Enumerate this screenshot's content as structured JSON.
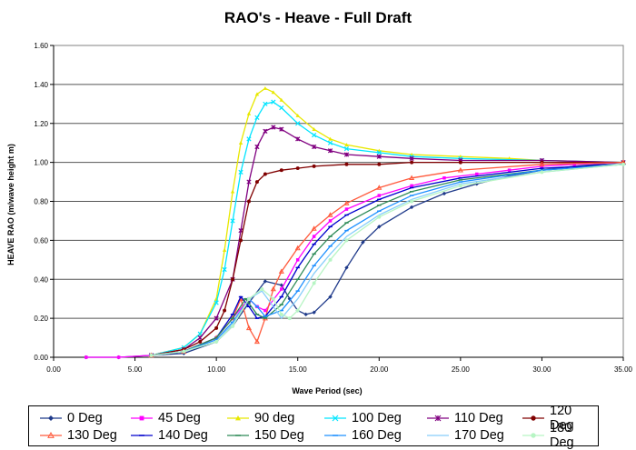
{
  "chart_data": {
    "type": "line",
    "title": "RAO's - Heave - Full Draft",
    "xlabel": "Wave Period  (sec)",
    "ylabel": "HEAVE RAO (m/wave height m)",
    "xlim": [
      0,
      35
    ],
    "ylim": [
      0,
      1.6
    ],
    "x_ticks": [
      "0.00",
      "5.00",
      "10.00",
      "15.00",
      "20.00",
      "25.00",
      "30.00",
      "35.00"
    ],
    "y_ticks": [
      "0.00",
      "0.20",
      "0.40",
      "0.60",
      "0.80",
      "1.00",
      "1.20",
      "1.40",
      "1.60"
    ],
    "grid": "horizontal",
    "legend_position": "bottom",
    "series": [
      {
        "name": "0 Deg",
        "color": "#1f3a8a",
        "marker": "diamond",
        "points": [
          [
            2,
            0
          ],
          [
            4,
            0
          ],
          [
            6,
            0.01
          ],
          [
            8,
            0.02
          ],
          [
            10,
            0.08
          ],
          [
            11,
            0.16
          ],
          [
            12,
            0.28
          ],
          [
            13,
            0.39
          ],
          [
            14,
            0.37
          ],
          [
            14.5,
            0.3
          ],
          [
            15,
            0.24
          ],
          [
            15.5,
            0.22
          ],
          [
            16,
            0.23
          ],
          [
            17,
            0.31
          ],
          [
            18,
            0.46
          ],
          [
            19,
            0.59
          ],
          [
            20,
            0.67
          ],
          [
            22,
            0.77
          ],
          [
            24,
            0.84
          ],
          [
            26,
            0.89
          ],
          [
            28,
            0.93
          ],
          [
            30,
            0.96
          ],
          [
            32,
            0.98
          ],
          [
            35,
            1.0
          ]
        ]
      },
      {
        "name": "45 Deg",
        "color": "#ff00ff",
        "marker": "square",
        "points": [
          [
            2,
            0
          ],
          [
            4,
            0
          ],
          [
            6,
            0.01
          ],
          [
            8,
            0.03
          ],
          [
            10,
            0.1
          ],
          [
            11,
            0.2
          ],
          [
            12,
            0.3
          ],
          [
            12.5,
            0.26
          ],
          [
            13,
            0.24
          ],
          [
            14,
            0.35
          ],
          [
            15,
            0.5
          ],
          [
            16,
            0.62
          ],
          [
            17,
            0.7
          ],
          [
            18,
            0.76
          ],
          [
            20,
            0.83
          ],
          [
            22,
            0.88
          ],
          [
            24,
            0.92
          ],
          [
            26,
            0.94
          ],
          [
            28,
            0.96
          ],
          [
            30,
            0.98
          ],
          [
            32,
            0.99
          ],
          [
            35,
            1.0
          ]
        ]
      },
      {
        "name": "90 deg",
        "color": "#e8e800",
        "marker": "triangle",
        "points": [
          [
            6,
            0.01
          ],
          [
            8,
            0.05
          ],
          [
            9,
            0.12
          ],
          [
            10,
            0.3
          ],
          [
            10.5,
            0.55
          ],
          [
            11,
            0.85
          ],
          [
            11.5,
            1.1
          ],
          [
            12,
            1.25
          ],
          [
            12.5,
            1.35
          ],
          [
            13,
            1.38
          ],
          [
            13.5,
            1.36
          ],
          [
            14,
            1.32
          ],
          [
            15,
            1.24
          ],
          [
            16,
            1.17
          ],
          [
            17,
            1.12
          ],
          [
            18,
            1.09
          ],
          [
            20,
            1.06
          ],
          [
            22,
            1.04
          ],
          [
            25,
            1.03
          ],
          [
            28,
            1.02
          ],
          [
            30,
            1.01
          ],
          [
            35,
            1.0
          ]
        ]
      },
      {
        "name": "100 Deg",
        "color": "#00e5ff",
        "marker": "x",
        "points": [
          [
            6,
            0.01
          ],
          [
            8,
            0.05
          ],
          [
            9,
            0.12
          ],
          [
            10,
            0.28
          ],
          [
            10.5,
            0.45
          ],
          [
            11,
            0.7
          ],
          [
            11.5,
            0.95
          ],
          [
            12,
            1.12
          ],
          [
            12.5,
            1.23
          ],
          [
            13,
            1.3
          ],
          [
            13.5,
            1.31
          ],
          [
            14,
            1.28
          ],
          [
            15,
            1.2
          ],
          [
            16,
            1.14
          ],
          [
            17,
            1.1
          ],
          [
            18,
            1.07
          ],
          [
            20,
            1.05
          ],
          [
            22,
            1.03
          ],
          [
            25,
            1.02
          ],
          [
            30,
            1.01
          ],
          [
            35,
            1.0
          ]
        ]
      },
      {
        "name": "110 Deg",
        "color": "#800080",
        "marker": "asterisk",
        "points": [
          [
            6,
            0.01
          ],
          [
            8,
            0.04
          ],
          [
            9,
            0.1
          ],
          [
            10,
            0.2
          ],
          [
            11,
            0.4
          ],
          [
            11.5,
            0.65
          ],
          [
            12,
            0.9
          ],
          [
            12.5,
            1.08
          ],
          [
            13,
            1.16
          ],
          [
            13.5,
            1.18
          ],
          [
            14,
            1.17
          ],
          [
            15,
            1.12
          ],
          [
            16,
            1.08
          ],
          [
            17,
            1.06
          ],
          [
            18,
            1.04
          ],
          [
            20,
            1.03
          ],
          [
            22,
            1.02
          ],
          [
            25,
            1.01
          ],
          [
            30,
            1.01
          ],
          [
            35,
            1.0
          ]
        ]
      },
      {
        "name": "120 Deg",
        "color": "#800000",
        "marker": "circle",
        "points": [
          [
            6,
            0.01
          ],
          [
            8,
            0.04
          ],
          [
            9,
            0.08
          ],
          [
            10,
            0.15
          ],
          [
            10.5,
            0.24
          ],
          [
            11,
            0.4
          ],
          [
            11.5,
            0.6
          ],
          [
            12,
            0.8
          ],
          [
            12.5,
            0.9
          ],
          [
            13,
            0.94
          ],
          [
            14,
            0.96
          ],
          [
            15,
            0.97
          ],
          [
            16,
            0.98
          ],
          [
            18,
            0.99
          ],
          [
            20,
            0.99
          ],
          [
            22,
            1.0
          ],
          [
            25,
            1.0
          ],
          [
            30,
            1.0
          ],
          [
            35,
            1.0
          ]
        ]
      },
      {
        "name": "130 Deg",
        "color": "#ff5a3c",
        "marker": "triangle-open",
        "points": [
          [
            6,
            0.01
          ],
          [
            8,
            0.03
          ],
          [
            10,
            0.1
          ],
          [
            11,
            0.2
          ],
          [
            11.5,
            0.3
          ],
          [
            12,
            0.15
          ],
          [
            12.5,
            0.08
          ],
          [
            13,
            0.2
          ],
          [
            13.5,
            0.35
          ],
          [
            14,
            0.44
          ],
          [
            15,
            0.56
          ],
          [
            16,
            0.66
          ],
          [
            17,
            0.73
          ],
          [
            18,
            0.79
          ],
          [
            20,
            0.87
          ],
          [
            22,
            0.92
          ],
          [
            25,
            0.96
          ],
          [
            30,
            0.99
          ],
          [
            35,
            1.0
          ]
        ]
      },
      {
        "name": "140 Deg",
        "color": "#0000cd",
        "marker": "dash",
        "points": [
          [
            6,
            0.01
          ],
          [
            8,
            0.03
          ],
          [
            10,
            0.1
          ],
          [
            11,
            0.22
          ],
          [
            11.5,
            0.31
          ],
          [
            12,
            0.26
          ],
          [
            12.5,
            0.2
          ],
          [
            13,
            0.21
          ],
          [
            14,
            0.31
          ],
          [
            15,
            0.46
          ],
          [
            16,
            0.58
          ],
          [
            17,
            0.67
          ],
          [
            18,
            0.73
          ],
          [
            20,
            0.81
          ],
          [
            22,
            0.87
          ],
          [
            25,
            0.92
          ],
          [
            30,
            0.97
          ],
          [
            35,
            0.99
          ]
        ]
      },
      {
        "name": "150 Deg",
        "color": "#2e8b57",
        "marker": "dash",
        "points": [
          [
            6,
            0.01
          ],
          [
            8,
            0.03
          ],
          [
            10,
            0.1
          ],
          [
            11,
            0.2
          ],
          [
            11.8,
            0.3
          ],
          [
            12.5,
            0.22
          ],
          [
            13,
            0.2
          ],
          [
            14,
            0.27
          ],
          [
            15,
            0.4
          ],
          [
            16,
            0.53
          ],
          [
            17,
            0.62
          ],
          [
            18,
            0.69
          ],
          [
            20,
            0.78
          ],
          [
            22,
            0.85
          ],
          [
            25,
            0.91
          ],
          [
            30,
            0.96
          ],
          [
            35,
            0.99
          ]
        ]
      },
      {
        "name": "160 Deg",
        "color": "#1e90ff",
        "marker": "dash",
        "points": [
          [
            6,
            0.01
          ],
          [
            8,
            0.03
          ],
          [
            10,
            0.09
          ],
          [
            11,
            0.18
          ],
          [
            12,
            0.3
          ],
          [
            12.5,
            0.26
          ],
          [
            13,
            0.21
          ],
          [
            14,
            0.24
          ],
          [
            15,
            0.34
          ],
          [
            16,
            0.47
          ],
          [
            17,
            0.57
          ],
          [
            18,
            0.65
          ],
          [
            20,
            0.75
          ],
          [
            22,
            0.83
          ],
          [
            25,
            0.9
          ],
          [
            30,
            0.96
          ],
          [
            35,
            0.99
          ]
        ]
      },
      {
        "name": "170 Deg",
        "color": "#87cefa",
        "marker": "none",
        "points": [
          [
            6,
            0.01
          ],
          [
            8,
            0.03
          ],
          [
            10,
            0.08
          ],
          [
            11,
            0.17
          ],
          [
            12,
            0.3
          ],
          [
            12.8,
            0.34
          ],
          [
            13.5,
            0.26
          ],
          [
            14,
            0.2
          ],
          [
            15,
            0.3
          ],
          [
            16,
            0.43
          ],
          [
            17,
            0.53
          ],
          [
            18,
            0.62
          ],
          [
            20,
            0.73
          ],
          [
            22,
            0.81
          ],
          [
            25,
            0.89
          ],
          [
            30,
            0.95
          ],
          [
            35,
            0.99
          ]
        ]
      },
      {
        "name": "180 Deg",
        "color": "#b7f5c4",
        "marker": "circle",
        "points": [
          [
            6,
            0.01
          ],
          [
            8,
            0.03
          ],
          [
            10,
            0.08
          ],
          [
            11,
            0.16
          ],
          [
            12,
            0.3
          ],
          [
            12.8,
            0.35
          ],
          [
            13.5,
            0.3
          ],
          [
            14,
            0.22
          ],
          [
            14.5,
            0.2
          ],
          [
            15,
            0.24
          ],
          [
            16,
            0.38
          ],
          [
            17,
            0.5
          ],
          [
            18,
            0.6
          ],
          [
            20,
            0.72
          ],
          [
            22,
            0.8
          ],
          [
            25,
            0.88
          ],
          [
            30,
            0.95
          ],
          [
            35,
            0.99
          ]
        ]
      }
    ]
  }
}
